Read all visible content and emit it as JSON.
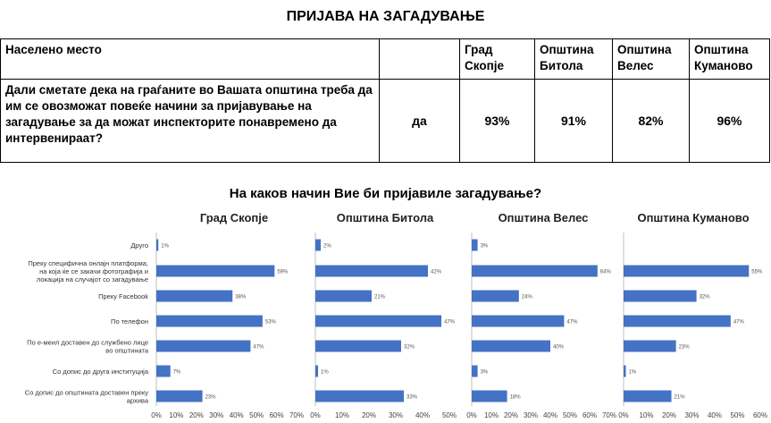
{
  "title": "ПРИЈАВА НА ЗАГАДУВАЊЕ",
  "table": {
    "header": [
      "Населено место",
      "",
      "Град Скопје",
      "Општина Битола",
      "Општина Велес",
      "Општина Куманово"
    ],
    "question": "Дали сметате дека на граѓаните во Вашата општина треба да им се овозможат повеќе начини за пријавување на загадување за да можат инспекторите понавремено да интервенираат?",
    "answer": "да",
    "values": [
      "93%",
      "91%",
      "82%",
      "96%"
    ]
  },
  "chart_title": "На каков начин Вие би пријавиле загадување?",
  "chart_data": {
    "type": "bar",
    "orientation": "horizontal",
    "categories": [
      "Друго",
      "Преку специфична онлајн платформа, на која ќе се закачи фотографија и локација на случајот со загадување",
      "Преку Facebook",
      "По телефон",
      "По е-меил доставен до службено лице во општината",
      "Со допис до друга институција",
      "Со допис до општината доставен преку архива"
    ],
    "category_lines": [
      [
        "Друго"
      ],
      [
        "Преку специфична онлајн платформа,",
        "на која ќе се закачи фотографија и",
        "локација на случајот со загадување"
      ],
      [
        "Преку Facebook"
      ],
      [
        "По телефон"
      ],
      [
        "По е-меил доставен до службено лице",
        "во општината"
      ],
      [
        "Со допис до друга институција"
      ],
      [
        "Со допис до општината доставен преку",
        "архива"
      ]
    ],
    "panels": [
      {
        "name": "Град Скопје",
        "values": [
          1,
          59,
          38,
          53,
          47,
          7,
          23
        ],
        "value_labels": [
          "1%",
          "59%",
          "38%",
          "53%",
          "47%",
          "7%",
          "23%"
        ],
        "xlim": [
          0,
          70
        ],
        "ticks": [
          "0%",
          "10%",
          "20%",
          "30%",
          "40%",
          "50%",
          "60%",
          "70%"
        ]
      },
      {
        "name": "Општина Битола",
        "values": [
          2,
          42,
          21,
          47,
          32,
          1,
          33
        ],
        "value_labels": [
          "2%",
          "42%",
          "21%",
          "47%",
          "32%",
          "1%",
          "33%"
        ],
        "xlim": [
          0,
          50
        ],
        "ticks": [
          "0%",
          "10%",
          "20%",
          "30%",
          "40%",
          "50%"
        ]
      },
      {
        "name": "Општина Велес",
        "values": [
          3,
          64,
          24,
          47,
          40,
          3,
          18
        ],
        "value_labels": [
          "3%",
          "64%",
          "24%",
          "47%",
          "40%",
          "3%",
          "18%"
        ],
        "xlim": [
          0,
          70
        ],
        "ticks": [
          "0%",
          "10%",
          "20%",
          "30%",
          "40%",
          "50%",
          "60%",
          "70%"
        ]
      },
      {
        "name": "Општина Куманово",
        "values": [
          null,
          55,
          32,
          47,
          23,
          1,
          21
        ],
        "value_labels": [
          "",
          "55%",
          "32%",
          "47%",
          "23%",
          "1%",
          "21%"
        ],
        "xlim": [
          0,
          60
        ],
        "ticks": [
          "0%",
          "10%",
          "20%",
          "30%",
          "40%",
          "50%",
          "60%"
        ]
      }
    ],
    "bar_color": "#4472c4",
    "grid": false
  }
}
